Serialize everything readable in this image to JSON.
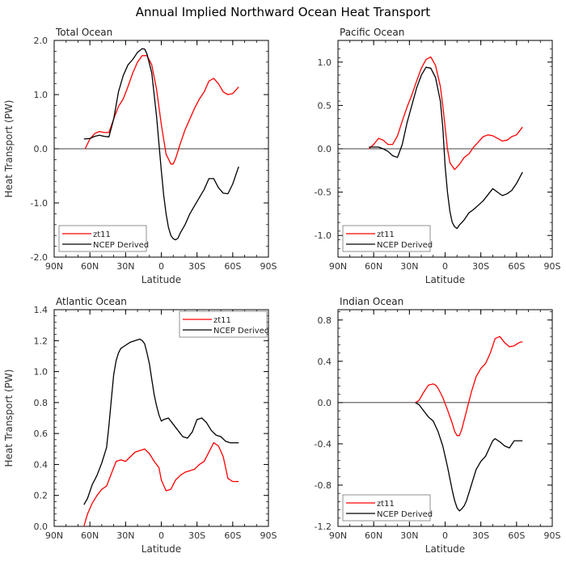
{
  "figure_title": "Annual Implied Northward Ocean Heat Transport",
  "colors": {
    "model": "#ff0000",
    "ncep": "#000000",
    "axis": "#000000",
    "zero_line": "#000000"
  },
  "chart_data": [
    {
      "type": "line",
      "title": "Total Ocean",
      "xlabel": "Latitude",
      "ylabel": "Heat Transport (PW)",
      "xlim": [
        90,
        -90
      ],
      "ylim": [
        -2.0,
        2.0
      ],
      "xticks": [
        90,
        60,
        30,
        0,
        -30,
        -60,
        -90
      ],
      "xtick_labels": [
        "90N",
        "60N",
        "30N",
        "0",
        "30S",
        "60S",
        "90S"
      ],
      "yticks": [
        -2.0,
        -1.0,
        0.0,
        1.0,
        2.0
      ],
      "ytick_labels": [
        "-2.0",
        "-1.0",
        "0.0",
        "1.0",
        "2.0"
      ],
      "zero_line": true,
      "legend": "bottom-left",
      "series": [
        {
          "name": "zt11",
          "color": "#ff0000",
          "x": [
            64,
            60,
            56,
            52,
            48,
            44,
            40,
            36,
            32,
            28,
            24,
            20,
            16,
            12,
            8,
            4,
            0,
            -4,
            -8,
            -10,
            -12,
            -16,
            -20,
            -24,
            -28,
            -32,
            -36,
            -40,
            -44,
            -48,
            -52,
            -56,
            -60,
            -65
          ],
          "y": [
            0.0,
            0.18,
            0.28,
            0.32,
            0.3,
            0.3,
            0.55,
            0.78,
            0.92,
            1.15,
            1.4,
            1.6,
            1.72,
            1.72,
            1.55,
            1.1,
            0.45,
            -0.1,
            -0.28,
            -0.28,
            -0.18,
            0.1,
            0.35,
            0.55,
            0.75,
            0.92,
            1.05,
            1.25,
            1.3,
            1.2,
            1.05,
            1.0,
            1.02,
            1.14
          ]
        },
        {
          "name": "NCEP Derived",
          "color": "#000000",
          "x": [
            65,
            60,
            56,
            52,
            48,
            44,
            40,
            36,
            32,
            28,
            24,
            20,
            16,
            14,
            12,
            8,
            4,
            0,
            -2,
            -4,
            -6,
            -8,
            -10,
            -12,
            -14,
            -16,
            -20,
            -24,
            -28,
            -32,
            -36,
            -40,
            -44,
            -48,
            -52,
            -56,
            -60,
            -65
          ],
          "y": [
            0.18,
            0.19,
            0.23,
            0.25,
            0.23,
            0.22,
            0.55,
            1.05,
            1.35,
            1.55,
            1.65,
            1.78,
            1.85,
            1.84,
            1.75,
            1.4,
            0.6,
            -0.4,
            -0.85,
            -1.2,
            -1.45,
            -1.6,
            -1.66,
            -1.68,
            -1.65,
            -1.55,
            -1.4,
            -1.2,
            -1.05,
            -0.9,
            -0.75,
            -0.55,
            -0.55,
            -0.72,
            -0.82,
            -0.83,
            -0.65,
            -0.33
          ]
        }
      ]
    },
    {
      "type": "line",
      "title": "Pacific Ocean",
      "xlabel": "Latitude",
      "ylabel": "",
      "xlim": [
        90,
        -90
      ],
      "ylim": [
        -1.25,
        1.25
      ],
      "xticks": [
        90,
        60,
        30,
        0,
        -30,
        -60,
        -90
      ],
      "xtick_labels": [
        "90N",
        "60N",
        "30N",
        "0",
        "30S",
        "60S",
        "90S"
      ],
      "yticks": [
        -1.0,
        -0.5,
        0.0,
        0.5,
        1.0
      ],
      "ytick_labels": [
        "-1.0",
        "-0.5",
        "0.0",
        "0.5",
        "1.0"
      ],
      "zero_line": true,
      "legend": "bottom-left",
      "series": [
        {
          "name": "zt11",
          "color": "#ff0000",
          "x": [
            64,
            60,
            56,
            52,
            48,
            44,
            40,
            36,
            32,
            28,
            24,
            20,
            16,
            12,
            8,
            4,
            2,
            0,
            -2,
            -4,
            -8,
            -12,
            -16,
            -20,
            -24,
            -28,
            -32,
            -36,
            -40,
            -44,
            -48,
            -52,
            -56,
            -60,
            -65
          ],
          "y": [
            0.0,
            0.05,
            0.12,
            0.1,
            0.05,
            0.05,
            0.15,
            0.32,
            0.48,
            0.62,
            0.78,
            0.93,
            1.03,
            1.06,
            0.96,
            0.72,
            0.5,
            0.25,
            0.0,
            -0.16,
            -0.24,
            -0.18,
            -0.1,
            -0.06,
            0.02,
            0.08,
            0.14,
            0.16,
            0.15,
            0.12,
            0.09,
            0.1,
            0.14,
            0.16,
            0.25
          ]
        },
        {
          "name": "NCEP Derived",
          "color": "#000000",
          "x": [
            64,
            60,
            56,
            52,
            48,
            44,
            40,
            36,
            32,
            28,
            24,
            20,
            16,
            12,
            8,
            4,
            2,
            0,
            -2,
            -4,
            -6,
            -8,
            -10,
            -12,
            -16,
            -20,
            -24,
            -28,
            -32,
            -36,
            -40,
            -44,
            -48,
            -52,
            -56,
            -60,
            -65
          ],
          "y": [
            0.02,
            0.02,
            0.02,
            0.0,
            -0.03,
            -0.08,
            -0.1,
            0.05,
            0.3,
            0.5,
            0.7,
            0.85,
            0.94,
            0.93,
            0.82,
            0.55,
            0.25,
            -0.2,
            -0.5,
            -0.72,
            -0.85,
            -0.9,
            -0.92,
            -0.88,
            -0.82,
            -0.74,
            -0.7,
            -0.65,
            -0.6,
            -0.53,
            -0.46,
            -0.5,
            -0.54,
            -0.52,
            -0.48,
            -0.4,
            -0.27
          ]
        }
      ]
    },
    {
      "type": "line",
      "title": "Atlantic Ocean",
      "xlabel": "Latitude",
      "ylabel": "Heat Transport (PW)",
      "xlim": [
        90,
        -90
      ],
      "ylim": [
        0.0,
        1.4
      ],
      "xticks": [
        90,
        60,
        30,
        0,
        -30,
        -60,
        -90
      ],
      "xtick_labels": [
        "90N",
        "60N",
        "30N",
        "0",
        "30S",
        "60S",
        "90S"
      ],
      "yticks": [
        0.0,
        0.2,
        0.4,
        0.6,
        0.8,
        1.0,
        1.2,
        1.4
      ],
      "ytick_labels": [
        "0.0",
        "0.2",
        "0.4",
        "0.6",
        "0.8",
        "1.0",
        "1.2",
        "1.4"
      ],
      "zero_line": false,
      "legend": "top-right",
      "series": [
        {
          "name": "zt11",
          "color": "#ff0000",
          "x": [
            65,
            62,
            58,
            54,
            50,
            46,
            42,
            38,
            34,
            30,
            26,
            22,
            18,
            14,
            10,
            6,
            2,
            0,
            -4,
            -8,
            -12,
            -16,
            -20,
            -24,
            -28,
            -32,
            -36,
            -40,
            -44,
            -48,
            -52,
            -56,
            -60,
            -65
          ],
          "y": [
            0.0,
            0.08,
            0.15,
            0.2,
            0.24,
            0.26,
            0.34,
            0.42,
            0.43,
            0.42,
            0.45,
            0.48,
            0.49,
            0.5,
            0.47,
            0.42,
            0.38,
            0.3,
            0.23,
            0.24,
            0.3,
            0.33,
            0.35,
            0.36,
            0.37,
            0.4,
            0.42,
            0.48,
            0.54,
            0.52,
            0.45,
            0.31,
            0.29,
            0.29
          ]
        },
        {
          "name": "NCEP Derived",
          "color": "#000000",
          "x": [
            65,
            62,
            58,
            54,
            50,
            46,
            44,
            42,
            40,
            38,
            36,
            34,
            30,
            26,
            22,
            18,
            16,
            14,
            12,
            10,
            8,
            6,
            4,
            2,
            0,
            -2,
            -6,
            -10,
            -14,
            -18,
            -22,
            -26,
            -30,
            -34,
            -38,
            -42,
            -46,
            -50,
            -54,
            -58,
            -62,
            -65
          ],
          "y": [
            0.14,
            0.18,
            0.27,
            0.33,
            0.41,
            0.51,
            0.65,
            0.82,
            0.98,
            1.07,
            1.12,
            1.15,
            1.17,
            1.19,
            1.2,
            1.21,
            1.2,
            1.18,
            1.12,
            1.05,
            0.95,
            0.85,
            0.78,
            0.72,
            0.68,
            0.69,
            0.7,
            0.66,
            0.62,
            0.58,
            0.57,
            0.61,
            0.69,
            0.7,
            0.67,
            0.62,
            0.59,
            0.58,
            0.55,
            0.54,
            0.54,
            0.54
          ]
        }
      ]
    },
    {
      "type": "line",
      "title": "Indian Ocean",
      "xlabel": "Latitude",
      "ylabel": "",
      "xlim": [
        90,
        -90
      ],
      "ylim": [
        -1.2,
        0.9
      ],
      "xticks": [
        90,
        60,
        30,
        0,
        -30,
        -60,
        -90
      ],
      "xtick_labels": [
        "90N",
        "60N",
        "30N",
        "0",
        "30S",
        "60S",
        "90S"
      ],
      "yticks": [
        -1.2,
        -0.8,
        -0.4,
        0.0,
        0.4,
        0.8
      ],
      "ytick_labels": [
        "-1.2",
        "-0.8",
        "-0.4",
        "0.0",
        "0.4",
        "0.8"
      ],
      "zero_line": true,
      "legend": "bottom-left",
      "series": [
        {
          "name": "zt11",
          "color": "#ff0000",
          "x": [
            25,
            22,
            18,
            14,
            10,
            8,
            6,
            2,
            -2,
            -6,
            -8,
            -10,
            -12,
            -14,
            -18,
            -22,
            -26,
            -30,
            -34,
            -38,
            -40,
            -42,
            -46,
            -50,
            -54,
            -58,
            -62,
            -65
          ],
          "y": [
            0.0,
            0.02,
            0.1,
            0.17,
            0.18,
            0.17,
            0.14,
            0.05,
            -0.07,
            -0.2,
            -0.28,
            -0.32,
            -0.32,
            -0.26,
            -0.08,
            0.1,
            0.25,
            0.33,
            0.38,
            0.48,
            0.55,
            0.62,
            0.64,
            0.58,
            0.54,
            0.55,
            0.58,
            0.59
          ]
        },
        {
          "name": "NCEP Derived",
          "color": "#000000",
          "x": [
            25,
            22,
            18,
            14,
            10,
            6,
            2,
            -2,
            -6,
            -8,
            -10,
            -12,
            -14,
            -16,
            -18,
            -22,
            -26,
            -30,
            -34,
            -38,
            -40,
            -42,
            -46,
            -50,
            -54,
            -58,
            -62,
            -65
          ],
          "y": [
            0.0,
            -0.02,
            -0.08,
            -0.14,
            -0.18,
            -0.28,
            -0.42,
            -0.62,
            -0.85,
            -0.95,
            -1.02,
            -1.05,
            -1.03,
            -1.0,
            -0.95,
            -0.8,
            -0.65,
            -0.57,
            -0.52,
            -0.42,
            -0.37,
            -0.35,
            -0.38,
            -0.42,
            -0.44,
            -0.37,
            -0.37,
            -0.37
          ]
        }
      ]
    }
  ]
}
